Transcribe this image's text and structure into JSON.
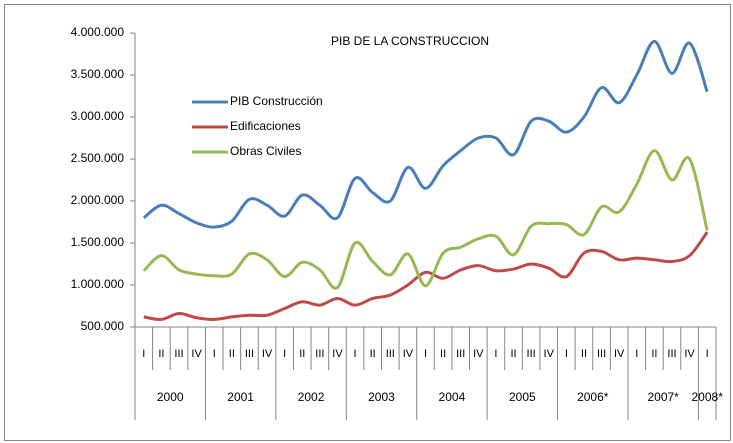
{
  "chart_data": {
    "type": "line",
    "title": "PIB  DE LA CONSTRUCCION",
    "categories": [
      "I",
      "II",
      "III",
      "IV",
      "I",
      "II",
      "III",
      "IV",
      "I",
      "II",
      "III",
      "IV",
      "I",
      "II",
      "III",
      "IV",
      "I",
      "II",
      "III",
      "IV",
      "I",
      "II",
      "III",
      "IV",
      "I",
      "II",
      "III",
      "IV",
      "I",
      "II",
      "III",
      "IV",
      "I"
    ],
    "groups": [
      "2000",
      "2001",
      "2002",
      "2003",
      "2004",
      "2005",
      "2006*",
      "2007*",
      "2008*"
    ],
    "series": [
      {
        "name": "PIB Construcción",
        "color": "#4a7ebb",
        "values": [
          1800000,
          1950000,
          1850000,
          1740000,
          1690000,
          1760000,
          2020000,
          1950000,
          1820000,
          2070000,
          1950000,
          1800000,
          2270000,
          2100000,
          2000000,
          2400000,
          2150000,
          2420000,
          2600000,
          2750000,
          2750000,
          2550000,
          2950000,
          2950000,
          2820000,
          3000000,
          3350000,
          3170000,
          3500000,
          3900000,
          3520000,
          3880000,
          3300000
        ]
      },
      {
        "name": "Edificaciones",
        "color": "#be4b48",
        "values": [
          620000,
          590000,
          660000,
          610000,
          590000,
          620000,
          640000,
          640000,
          720000,
          800000,
          760000,
          840000,
          760000,
          840000,
          880000,
          1000000,
          1150000,
          1080000,
          1180000,
          1230000,
          1170000,
          1190000,
          1250000,
          1200000,
          1100000,
          1380000,
          1400000,
          1300000,
          1320000,
          1300000,
          1280000,
          1350000,
          1630000
        ]
      },
      {
        "name": "Obras Civiles",
        "color": "#98b954",
        "values": [
          1170000,
          1350000,
          1180000,
          1130000,
          1110000,
          1130000,
          1370000,
          1300000,
          1100000,
          1270000,
          1180000,
          970000,
          1500000,
          1280000,
          1120000,
          1370000,
          990000,
          1380000,
          1450000,
          1550000,
          1580000,
          1360000,
          1700000,
          1730000,
          1720000,
          1600000,
          1930000,
          1870000,
          2200000,
          2600000,
          2250000,
          2500000,
          1650000
        ]
      }
    ],
    "ylim": [
      500000,
      4000000
    ],
    "yticks": [
      {
        "value": 500000,
        "label": "500.000"
      },
      {
        "value": 1000000,
        "label": "1.000.000"
      },
      {
        "value": 1500000,
        "label": "1.500.000"
      },
      {
        "value": 2000000,
        "label": "2.000.000"
      },
      {
        "value": 2500000,
        "label": "2.500.000"
      },
      {
        "value": 3000000,
        "label": "3.000.000"
      },
      {
        "value": 3500000,
        "label": "3.500.000"
      },
      {
        "value": 4000000,
        "label": "4.000.000"
      }
    ],
    "smooth": true,
    "grid": false
  }
}
